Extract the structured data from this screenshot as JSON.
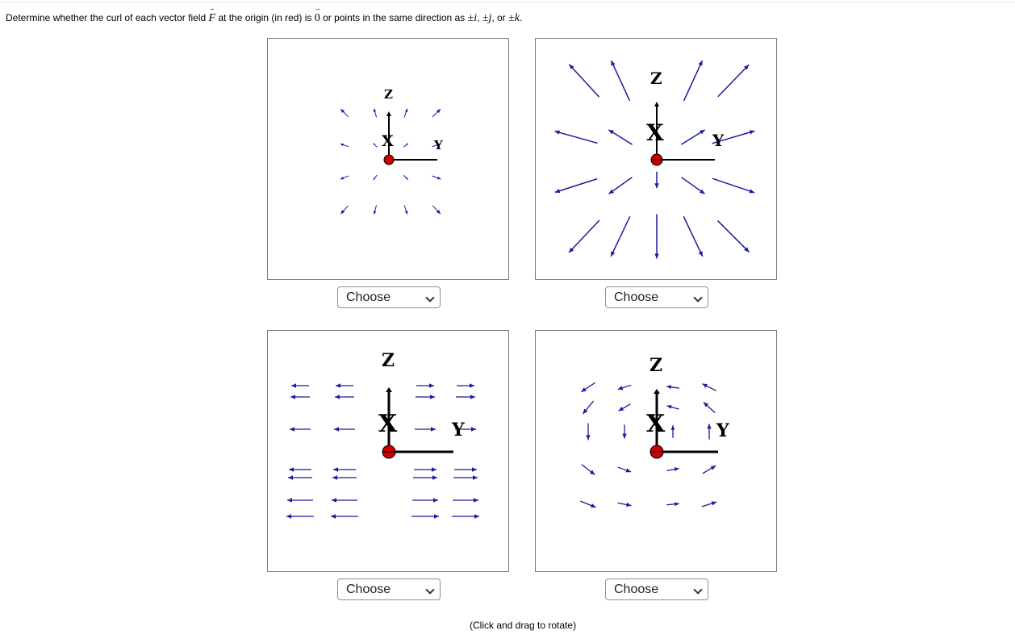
{
  "question": {
    "prefix": "Determine whether the curl of each vector field ",
    "field_symbol": "F",
    "middle": " at the origin (in red) is ",
    "zero_symbol": "0",
    "after_zero": " or points in the same direction as ",
    "pm_i": "±i",
    "comma1": ", ",
    "pm_j": "±j",
    "comma2": ", or ",
    "pm_k": "±k",
    "end": "."
  },
  "axes_labels": {
    "x": "X",
    "y": "Y",
    "z": "Z"
  },
  "panels": [
    {
      "id": "top-left",
      "select_value": "Choose"
    },
    {
      "id": "top-right",
      "select_value": "Choose"
    },
    {
      "id": "bottom-left",
      "select_value": "Choose"
    },
    {
      "id": "bottom-right",
      "select_value": "Choose"
    }
  ],
  "hint": "(Click and drag to rotate)",
  "colors": {
    "arrow": "#1a1a9e",
    "origin": "#cc0000",
    "axis": "#000000",
    "panel_border": "#7a7a7a"
  }
}
